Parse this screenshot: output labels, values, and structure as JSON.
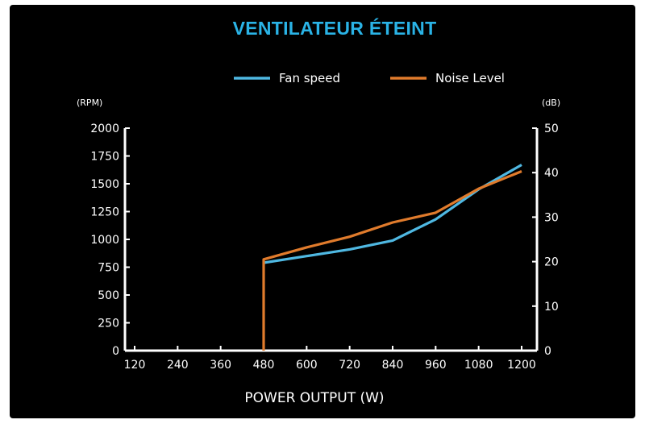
{
  "chart_data": {
    "type": "line",
    "title": "VENTILATEUR ÉTEINT",
    "xlabel": "POWER OUTPUT (W)",
    "ylabel_left": "(RPM)",
    "ylabel_right": "(dB)",
    "x_categories": [
      "120",
      "240",
      "360",
      "480",
      "600",
      "720",
      "840",
      "960",
      "1080",
      "1200"
    ],
    "x_range": [
      120,
      1200
    ],
    "ylim_left": [
      0,
      2000
    ],
    "ylim_right": [
      0,
      50
    ],
    "yticks_left": [
      "0",
      "250",
      "500",
      "750",
      "1000",
      "1250",
      "1500",
      "1750",
      "2000"
    ],
    "yticks_right": [
      "0",
      "10",
      "20",
      "30",
      "40",
      "50"
    ],
    "grid": false,
    "legend_position": "top-right",
    "series": [
      {
        "name": "Fan speed",
        "axis": "left",
        "color": "#4fb8e2",
        "points": [
          [
            480,
            790
          ],
          [
            600,
            850
          ],
          [
            720,
            910
          ],
          [
            840,
            990
          ],
          [
            960,
            1180
          ],
          [
            1080,
            1450
          ],
          [
            1200,
            1670
          ]
        ]
      },
      {
        "name": "Noise Level",
        "axis": "right",
        "color": "#e07b2c",
        "points": [
          [
            480,
            0
          ],
          [
            480,
            20.5
          ],
          [
            600,
            23.2
          ],
          [
            720,
            25.6
          ],
          [
            840,
            28.8
          ],
          [
            960,
            31.0
          ],
          [
            1080,
            36.4
          ],
          [
            1200,
            40.3
          ]
        ]
      }
    ]
  }
}
